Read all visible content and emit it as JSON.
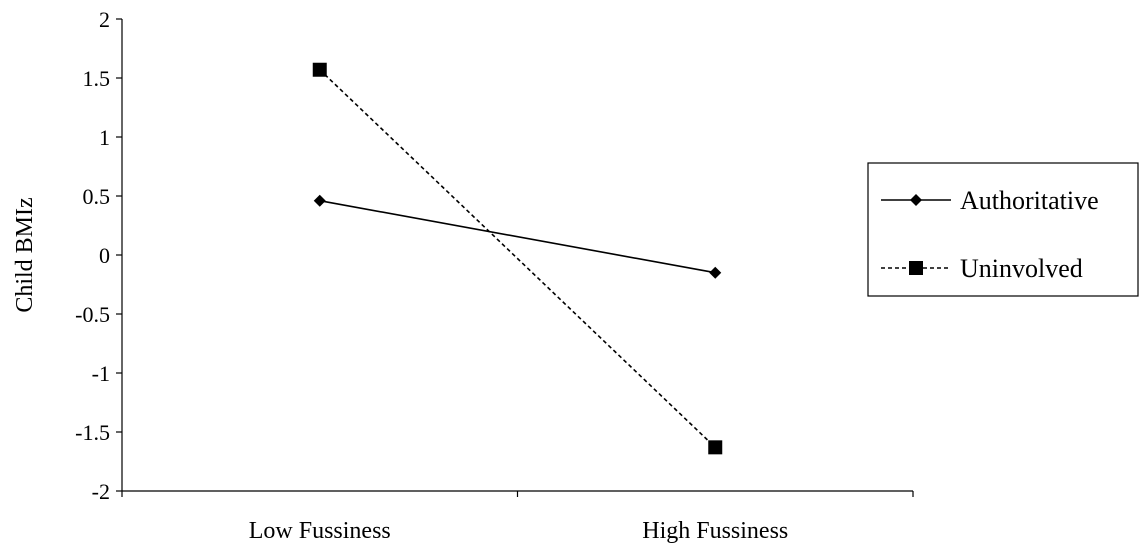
{
  "chart_data": {
    "type": "line",
    "categories": [
      "Low Fussiness",
      "High Fussiness"
    ],
    "ylabel": "Child BMIz",
    "xlabel": "",
    "ylim": [
      -2,
      2
    ],
    "yticks": [
      2,
      1.5,
      1,
      0.5,
      0,
      -0.5,
      -1,
      -1.5,
      -2
    ],
    "ytick_labels": [
      "2",
      "1.5",
      "1",
      "0.5",
      "0",
      "-0.5",
      "-1",
      "-1.5",
      "-2"
    ],
    "grid": false,
    "legend_position": "right",
    "series": [
      {
        "name": "Authoritative",
        "values": [
          0.46,
          -0.15
        ],
        "marker": "diamond",
        "line": "solid",
        "color": "#000000"
      },
      {
        "name": "Uninvolved",
        "values": [
          1.57,
          -1.63
        ],
        "marker": "square",
        "line": "dashed",
        "color": "#000000"
      }
    ]
  }
}
